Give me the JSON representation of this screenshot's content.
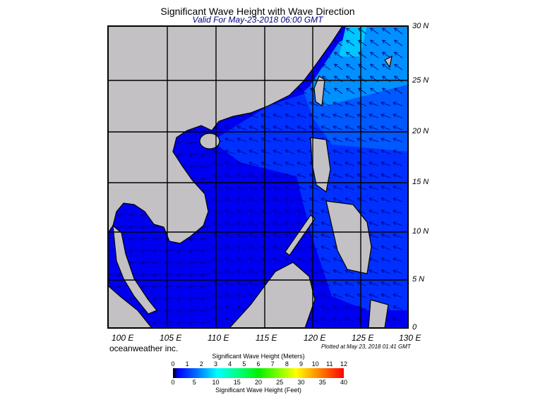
{
  "title": "Significant Wave Height with Wave Direction",
  "subtitle": "Valid For May-23-2018 06:00 GMT",
  "map": {
    "region": "South China Sea",
    "lon_labels": [
      "100 E",
      "105 E",
      "110 E",
      "115 E",
      "120 E",
      "125 E",
      "130 E"
    ],
    "lat_labels": [
      "30 N",
      "25 N",
      "20 N",
      "15 N",
      "10 N",
      "5 N",
      "0"
    ],
    "land_color": "#c3c1c4",
    "ocean_colors": [
      "#0000f0",
      "#0030ff",
      "#0060ff",
      "#0090ff",
      "#00c8ff"
    ],
    "arrow_color": "#000080",
    "predominant_wave_direction": "from east-northeast"
  },
  "credit": "oceanweather inc.",
  "plotted": "Plotted at May 23, 2018 01:41 GMT",
  "colorbar": {
    "title_meters": "Significant Wave Height (Meters)",
    "title_feet": "Significant Wave Height (Feet)",
    "meters": [
      "0",
      "1",
      "2",
      "3",
      "4",
      "5",
      "6",
      "7",
      "8",
      "9",
      "10",
      "11",
      "12"
    ],
    "feet": [
      "0",
      "5",
      "10",
      "15",
      "20",
      "25",
      "30",
      "35",
      "40"
    ]
  }
}
